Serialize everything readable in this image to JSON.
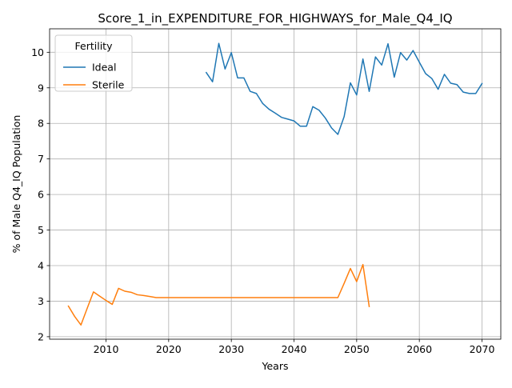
{
  "chart_data": {
    "type": "line",
    "title": "Score_1_in_EXPENDITURE_FOR_HIGHWAYS_for_Male_Q4_IQ",
    "xlabel": "Years",
    "ylabel": "% of Male Q4_IQ Population",
    "xlim": [
      2001,
      2073
    ],
    "ylim": [
      1.93,
      10.66
    ],
    "xticks": [
      2010,
      2020,
      2030,
      2040,
      2050,
      2060,
      2070
    ],
    "yticks": [
      2,
      3,
      4,
      5,
      6,
      7,
      8,
      9,
      10
    ],
    "grid": true,
    "legend": {
      "title": "Fertility",
      "placement": "top-left"
    },
    "series": [
      {
        "name": "Ideal",
        "color": "#1f77b4",
        "points": [
          [
            2026,
            9.43
          ],
          [
            2027,
            9.17
          ],
          [
            2028,
            10.25
          ],
          [
            2029,
            9.53
          ],
          [
            2030,
            9.99
          ],
          [
            2031,
            9.28
          ],
          [
            2032,
            9.28
          ],
          [
            2033,
            8.9
          ],
          [
            2034,
            8.84
          ],
          [
            2035,
            8.56
          ],
          [
            2036,
            8.4
          ],
          [
            2037,
            8.29
          ],
          [
            2038,
            8.17
          ],
          [
            2039,
            8.12
          ],
          [
            2040,
            8.07
          ],
          [
            2041,
            7.92
          ],
          [
            2042,
            7.92
          ],
          [
            2043,
            8.47
          ],
          [
            2044,
            8.37
          ],
          [
            2045,
            8.15
          ],
          [
            2046,
            7.87
          ],
          [
            2047,
            7.69
          ],
          [
            2048,
            8.19
          ],
          [
            2049,
            9.14
          ],
          [
            2050,
            8.8
          ],
          [
            2051,
            9.81
          ],
          [
            2052,
            8.9
          ],
          [
            2053,
            9.87
          ],
          [
            2054,
            9.64
          ],
          [
            2055,
            10.24
          ],
          [
            2056,
            9.3
          ],
          [
            2057,
            9.99
          ],
          [
            2058,
            9.78
          ],
          [
            2059,
            10.05
          ],
          [
            2060,
            9.72
          ],
          [
            2061,
            9.4
          ],
          [
            2062,
            9.26
          ],
          [
            2063,
            8.96
          ],
          [
            2064,
            9.38
          ],
          [
            2065,
            9.13
          ],
          [
            2066,
            9.09
          ],
          [
            2067,
            8.88
          ],
          [
            2068,
            8.84
          ],
          [
            2069,
            8.84
          ],
          [
            2070,
            9.12
          ]
        ]
      },
      {
        "name": "Sterile",
        "color": "#ff7f0e",
        "points": [
          [
            2004,
            2.86
          ],
          [
            2005,
            2.57
          ],
          [
            2006,
            2.33
          ],
          [
            2007,
            2.8
          ],
          [
            2008,
            3.26
          ],
          [
            2009,
            3.14
          ],
          [
            2010,
            3.02
          ],
          [
            2011,
            2.91
          ],
          [
            2012,
            3.36
          ],
          [
            2013,
            3.28
          ],
          [
            2014,
            3.25
          ],
          [
            2015,
            3.18
          ],
          [
            2016,
            3.16
          ],
          [
            2017,
            3.13
          ],
          [
            2018,
            3.1
          ],
          [
            2019,
            3.1
          ],
          [
            2020,
            3.1
          ],
          [
            2025,
            3.1
          ],
          [
            2030,
            3.1
          ],
          [
            2035,
            3.1
          ],
          [
            2040,
            3.1
          ],
          [
            2045,
            3.1
          ],
          [
            2046,
            3.1
          ],
          [
            2047,
            3.1
          ],
          [
            2048,
            3.5
          ],
          [
            2049,
            3.92
          ],
          [
            2050,
            3.55
          ],
          [
            2051,
            4.03
          ],
          [
            2052,
            2.85
          ]
        ]
      }
    ]
  }
}
